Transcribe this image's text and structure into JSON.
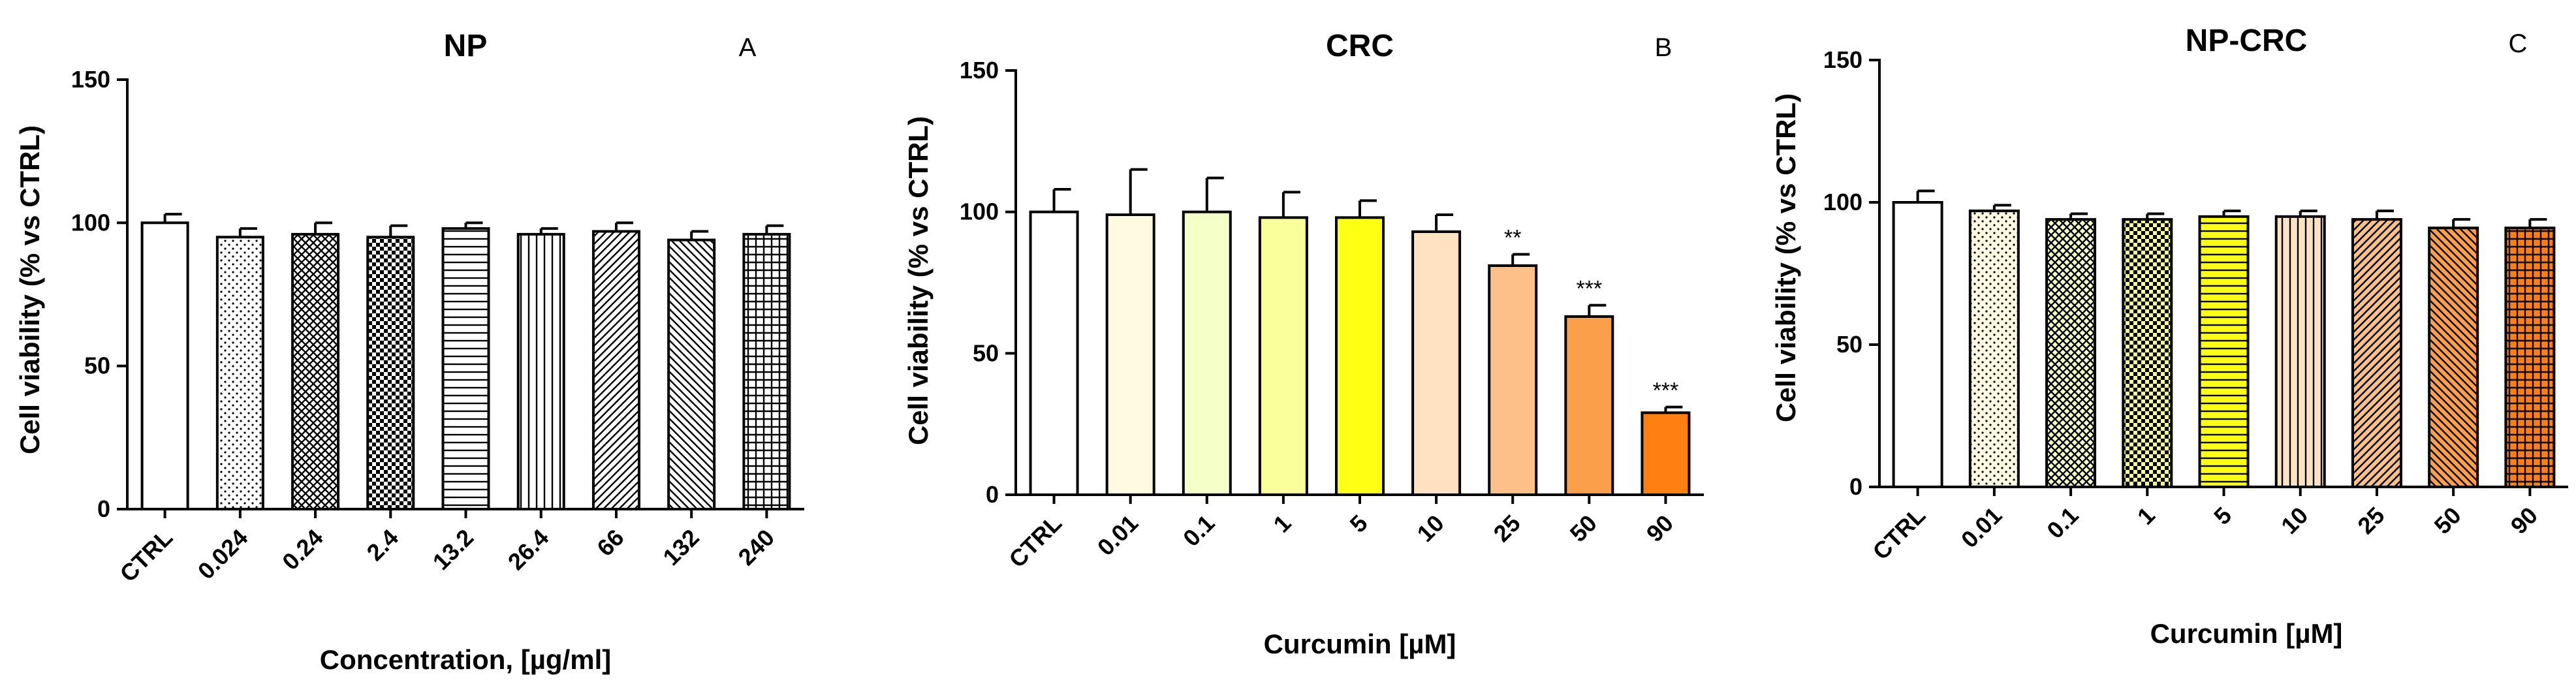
{
  "chart_data": [
    {
      "panel": "A",
      "type": "bar",
      "title": "NP",
      "xlabel": "Concentration, [µg/ml]",
      "ylabel": "Cell viability (% vs CTRL)",
      "ylim": [
        0,
        150
      ],
      "yticks": [
        0,
        50,
        100,
        150
      ],
      "categories": [
        "CTRL",
        "0.024",
        "0.24",
        "2.4",
        "13.2",
        "26.4",
        "66",
        "132",
        "240"
      ],
      "values": [
        100,
        95,
        96,
        95,
        98,
        96,
        97,
        94,
        96
      ],
      "errors": [
        3,
        3,
        4,
        4,
        2,
        2,
        3,
        3,
        3
      ],
      "significance": [
        "",
        "",
        "",
        "",
        "",
        "",
        "",
        "",
        ""
      ],
      "fills": [
        "#ffffff",
        "#ffffff",
        "#ffffff",
        "#ffffff",
        "#ffffff",
        "#ffffff",
        "#ffffff",
        "#ffffff",
        "#ffffff"
      ],
      "patterns": [
        "none",
        "dots",
        "crosshatch",
        "checker",
        "hlines",
        "vlines",
        "diag",
        "antidiag",
        "grid"
      ]
    },
    {
      "panel": "B",
      "type": "bar",
      "title": "CRC",
      "xlabel": "Curcumin [µM]",
      "ylabel": "Cell viability (% vs CTRL)",
      "ylim": [
        0,
        150
      ],
      "yticks": [
        0,
        50,
        100,
        150
      ],
      "categories": [
        "CTRL",
        "0.01",
        "0.1",
        "1",
        "5",
        "10",
        "25",
        "50",
        "90"
      ],
      "values": [
        100,
        99,
        100,
        98,
        98,
        93,
        81,
        63,
        29
      ],
      "errors": [
        8,
        16,
        12,
        9,
        6,
        6,
        4,
        4,
        2
      ],
      "significance": [
        "",
        "",
        "",
        "",
        "",
        "",
        "**",
        "***",
        "***"
      ],
      "fills": [
        "#ffffff",
        "#fffae0",
        "#f5ffc8",
        "#fbff9a",
        "#ffff14",
        "#ffe2c2",
        "#fcc088",
        "#fba04a",
        "#ff7f10"
      ],
      "patterns": [
        "none",
        "none",
        "none",
        "none",
        "none",
        "none",
        "none",
        "none",
        "none"
      ]
    },
    {
      "panel": "C",
      "type": "bar",
      "title": "NP-CRC",
      "xlabel": "Curcumin [µM]",
      "ylabel": "Cell viability (% vs CTRL)",
      "ylim": [
        0,
        150
      ],
      "yticks": [
        0,
        50,
        100,
        150
      ],
      "categories": [
        "CTRL",
        "0.01",
        "0.1",
        "1",
        "5",
        "10",
        "25",
        "50",
        "90"
      ],
      "values": [
        100,
        97,
        94,
        94,
        95,
        95,
        94,
        91,
        91
      ],
      "errors": [
        4,
        2,
        2,
        2,
        2,
        2,
        3,
        3,
        3
      ],
      "significance": [
        "",
        "",
        "",
        "",
        "",
        "",
        "",
        "",
        ""
      ],
      "fills": [
        "#ffffff",
        "#fffae0",
        "#f5ffc8",
        "#fbff9a",
        "#ffff14",
        "#ffe2c2",
        "#fcc088",
        "#fba04a",
        "#ff7f10"
      ],
      "patterns": [
        "none",
        "dots",
        "crosshatch",
        "checker",
        "hlines",
        "vlines",
        "diag",
        "antidiag",
        "grid"
      ]
    }
  ]
}
